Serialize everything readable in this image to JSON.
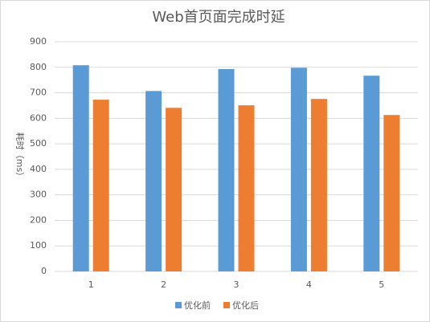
{
  "chart_data": {
    "type": "bar",
    "title": "Web首页面完成时延",
    "y_label": "耗时（ms）",
    "categories": [
      "1",
      "2",
      "3",
      "4",
      "5"
    ],
    "series": [
      {
        "name": "优化前",
        "color": "#5b9bd5",
        "values": [
          808,
          707,
          793,
          798,
          767
        ]
      },
      {
        "name": "优化后",
        "color": "#ed7d31",
        "values": [
          673,
          641,
          651,
          676,
          613
        ]
      }
    ],
    "ylim": [
      0,
      900
    ],
    "yticks": [
      0,
      100,
      200,
      300,
      400,
      500,
      600,
      700,
      800,
      900
    ],
    "grid": true,
    "legend": "bottom"
  }
}
